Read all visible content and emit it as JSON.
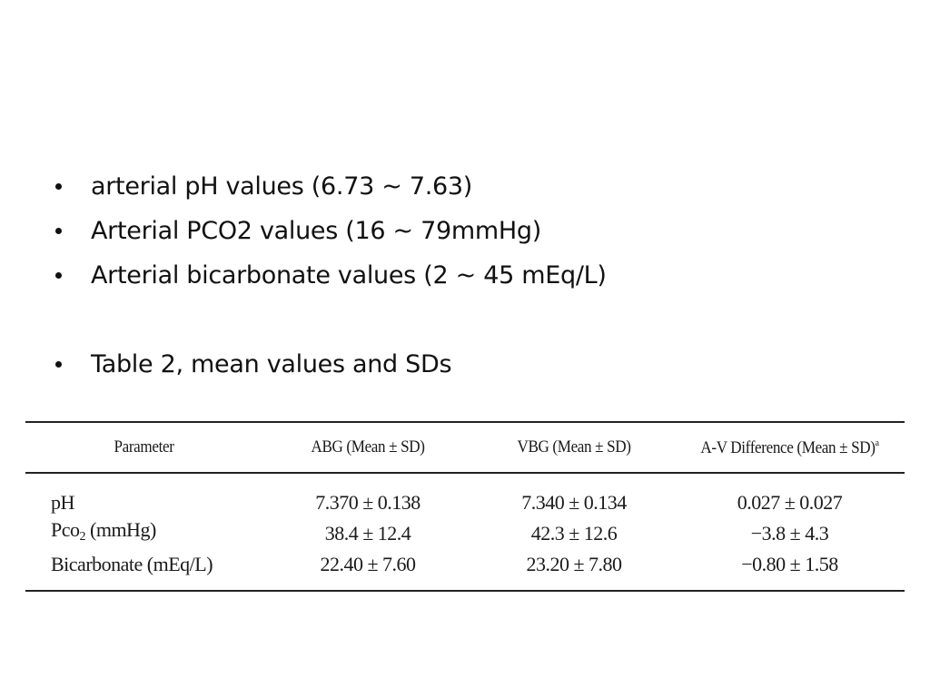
{
  "slide": {
    "bullets": [
      {
        "text": "arterial pH values (6.73 ~ 7.63)"
      },
      {
        "text": "Arterial PCO2 values (16 ~ 79mmHg)"
      },
      {
        "text": "Arterial bicarbonate values (2 ~ 45 mEq/L)"
      },
      {
        "text": "Table 2, mean values and SDs"
      }
    ]
  },
  "table": {
    "headers": {
      "parameter": "Parameter",
      "abg": "ABG (Mean ± SD)",
      "vbg": "VBG (Mean ± SD)",
      "diff": "A-V Difference (Mean ± SD)",
      "diff_footnote": "a"
    },
    "rows": [
      {
        "parameter": "pH",
        "param_sub": "",
        "param_suffix": "",
        "abg": "7.370 ± 0.138",
        "vbg": "7.340 ± 0.134",
        "diff": "0.027 ± 0.027"
      },
      {
        "parameter": "Pco",
        "param_sub": "2",
        "param_suffix": " (mmHg)",
        "abg": "38.4 ± 12.4",
        "vbg": "42.3 ± 12.6",
        "diff": "−3.8 ± 4.3"
      },
      {
        "parameter": "Bicarbonate (mEq/L)",
        "param_sub": "",
        "param_suffix": "",
        "abg": "22.40 ± 7.60",
        "vbg": "23.20 ± 7.80",
        "diff": "−0.80 ± 1.58"
      }
    ]
  }
}
